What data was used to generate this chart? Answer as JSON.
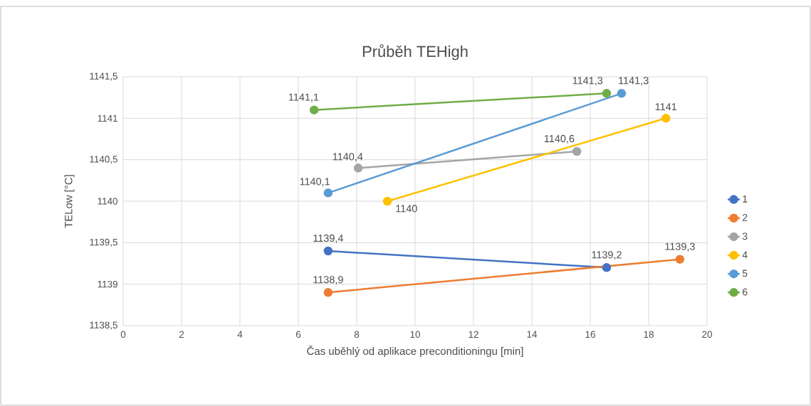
{
  "chart_data": {
    "type": "line",
    "title": "Průběh TEHigh",
    "xlabel": "Čas uběhlý od aplikace preconditioningu [min]",
    "ylabel": "TELow [°C]",
    "xlim": [
      0,
      20
    ],
    "xticks": [
      0,
      2,
      4,
      6,
      8,
      10,
      12,
      14,
      16,
      18,
      20
    ],
    "ylim": [
      1138.5,
      1141.5
    ],
    "yticks": [
      {
        "value": 1138.5,
        "label": "1138,5"
      },
      1139,
      {
        "value": 1139.5,
        "label": "1139,5"
      },
      1140,
      {
        "value": 1140.5,
        "label": "1140,5"
      },
      1141,
      {
        "value": 1141.5,
        "label": "1141,5"
      }
    ],
    "grid": true,
    "legend": "right",
    "marker": "circle",
    "line_style": "solid",
    "series": [
      {
        "name": "1",
        "color": "#4472c4",
        "x": [
          7.02,
          16.56
        ],
        "values": [
          1139.4,
          1139.2
        ],
        "value_labels": [
          "1139,4",
          "1139,2"
        ]
      },
      {
        "name": "2",
        "color": "#ed7d31",
        "x": [
          7.02,
          19.07
        ],
        "values": [
          1138.9,
          1139.3
        ],
        "value_labels": [
          "1138,9",
          "1139,3"
        ]
      },
      {
        "name": "3",
        "color": "#a5a5a5",
        "x": [
          8.05,
          15.54
        ],
        "values": [
          1140.4,
          1140.6
        ],
        "value_labels": [
          "1140,4",
          "1140,6"
        ]
      },
      {
        "name": "4",
        "color": "#ffc000",
        "x": [
          9.05,
          18.59
        ],
        "values": [
          1140,
          1141
        ],
        "value_labels": [
          "1140",
          "1141"
        ]
      },
      {
        "name": "5",
        "color": "#5b9bd5",
        "x": [
          7.02,
          17.07
        ],
        "values": [
          1140.1,
          1141.3
        ],
        "value_labels": [
          "1140,1",
          "1141,3"
        ]
      },
      {
        "name": "6",
        "color": "#70ad47",
        "x": [
          6.54,
          16.56
        ],
        "values": [
          1141.1,
          1141.3
        ],
        "value_labels": [
          "1141,1",
          "1141,3"
        ]
      }
    ]
  }
}
